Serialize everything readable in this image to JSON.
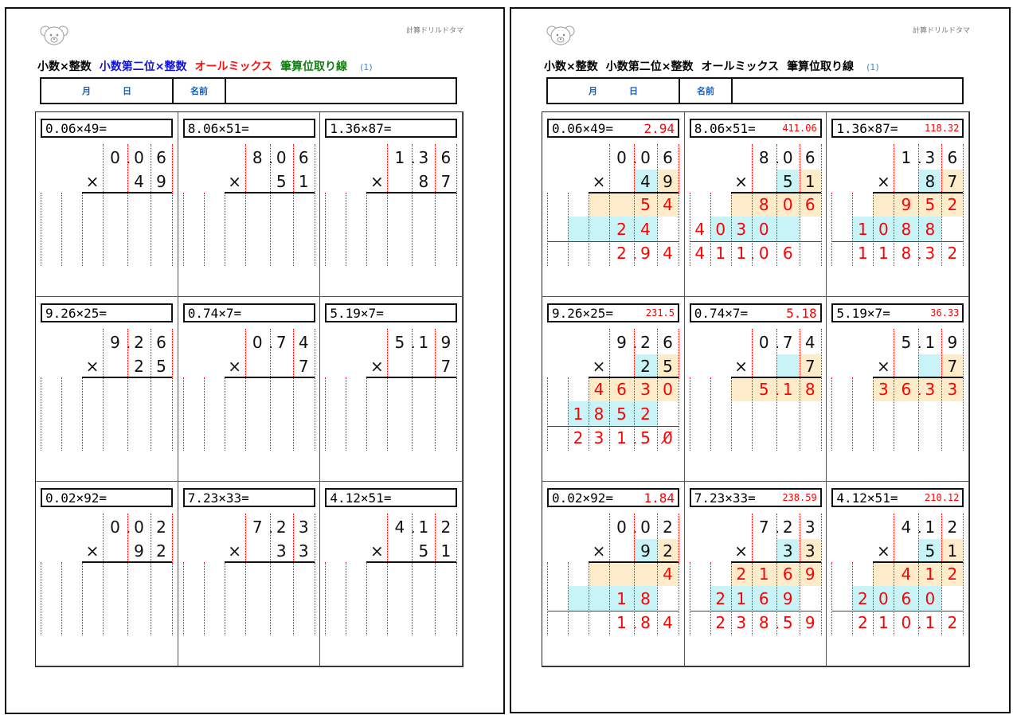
{
  "header": {
    "brand": "計算ドリルドタマ",
    "title_parts": [
      {
        "text": "小数×整数",
        "color": "#000000"
      },
      {
        "text": "小数第二位×整数",
        "color": "#1010e0"
      },
      {
        "text": "オールミックス",
        "color": "#ff1010"
      },
      {
        "text": "筆算位取り線",
        "color": "#108010"
      }
    ],
    "number": "(1)",
    "month_label": "月",
    "day_label": "日",
    "name_label": "名前"
  },
  "right_title_parts": [
    "小数×整数",
    "小数第二位×整数",
    "オールミックス",
    "筆算位取り線"
  ],
  "colors": {
    "answer": "#ff0000",
    "ones_highlight": "#fdebc9",
    "tens_highlight": "#c8f4f7"
  },
  "problems": [
    {
      "eq": "0.06×49=",
      "answer": "2.94",
      "answer_size": "large",
      "top": [
        "",
        "",
        "",
        "0.",
        "0",
        "6"
      ],
      "mult": [
        "",
        "",
        "×",
        "",
        "4",
        "9"
      ],
      "p1": [
        "",
        "",
        "",
        "",
        "5",
        "4"
      ],
      "p2": [
        "",
        "",
        "",
        "2",
        "4",
        ""
      ],
      "res": [
        "",
        "",
        "",
        "2.",
        "9",
        "4"
      ]
    },
    {
      "eq": "8.06×51=",
      "answer": "411.06",
      "answer_size": "small",
      "top": [
        "",
        "",
        "",
        "8.",
        "0",
        "6"
      ],
      "mult": [
        "",
        "",
        "×",
        "",
        "5",
        "1"
      ],
      "p1": [
        "",
        "",
        "",
        "8",
        "0",
        "6"
      ],
      "p2": [
        "4",
        "0",
        "3",
        "0",
        "",
        ""
      ],
      "res": [
        "4",
        "1",
        "1.",
        "0",
        "6",
        ""
      ]
    },
    {
      "eq": "1.36×87=",
      "answer": "118.32",
      "answer_size": "small",
      "top": [
        "",
        "",
        "",
        "1.",
        "3",
        "6"
      ],
      "mult": [
        "",
        "",
        "×",
        "",
        "8",
        "7"
      ],
      "p1": [
        "",
        "",
        "",
        "9",
        "5",
        "2"
      ],
      "p2": [
        "",
        "1",
        "0",
        "8",
        "8",
        ""
      ],
      "res": [
        "",
        "1",
        "1",
        "8.",
        "3",
        "2"
      ]
    },
    {
      "eq": "9.26×25=",
      "answer": "231.5",
      "answer_size": "small",
      "top": [
        "",
        "",
        "",
        "9.",
        "2",
        "6"
      ],
      "mult": [
        "",
        "",
        "×",
        "",
        "2",
        "5"
      ],
      "p1": [
        "",
        "",
        "4",
        "6",
        "3",
        "0"
      ],
      "p2": [
        "",
        "1",
        "8",
        "5",
        "2",
        ""
      ],
      "res": [
        "",
        "2",
        "3",
        "1.",
        "5",
        "0̸"
      ]
    },
    {
      "eq": "0.74×7=",
      "answer": "5.18",
      "answer_size": "large",
      "top": [
        "",
        "",
        "",
        "0.",
        "7",
        "4"
      ],
      "mult": [
        "",
        "",
        "×",
        "",
        "",
        "7"
      ],
      "p1": [
        "",
        "",
        "",
        "5.",
        "1",
        "8"
      ],
      "p2": null,
      "res": null
    },
    {
      "eq": "5.19×7=",
      "answer": "36.33",
      "answer_size": "small",
      "top": [
        "",
        "",
        "",
        "5.",
        "1",
        "9"
      ],
      "mult": [
        "",
        "",
        "×",
        "",
        "",
        "7"
      ],
      "p1": [
        "",
        "",
        "3",
        "6.",
        "3",
        "3"
      ],
      "p2": null,
      "res": null
    },
    {
      "eq": "0.02×92=",
      "answer": "1.84",
      "answer_size": "large",
      "top": [
        "",
        "",
        "",
        "0.",
        "0",
        "2"
      ],
      "mult": [
        "",
        "",
        "×",
        "",
        "9",
        "2"
      ],
      "p1": [
        "",
        "",
        "",
        "",
        "",
        "4"
      ],
      "p2": [
        "",
        "",
        "",
        "1",
        "8",
        ""
      ],
      "res": [
        "",
        "",
        "",
        "1.",
        "8",
        "4"
      ]
    },
    {
      "eq": "7.23×33=",
      "answer": "238.59",
      "answer_size": "small",
      "top": [
        "",
        "",
        "",
        "7.",
        "2",
        "3"
      ],
      "mult": [
        "",
        "",
        "×",
        "",
        "3",
        "3"
      ],
      "p1": [
        "",
        "",
        "2",
        "1",
        "6",
        "9"
      ],
      "p2": [
        "",
        "2",
        "1",
        "6",
        "9",
        ""
      ],
      "res": [
        "",
        "2",
        "3",
        "8.",
        "5",
        "9"
      ]
    },
    {
      "eq": "4.12×51=",
      "answer": "210.12",
      "answer_size": "small",
      "top": [
        "",
        "",
        "",
        "4.",
        "1",
        "2"
      ],
      "mult": [
        "",
        "",
        "×",
        "",
        "5",
        "1"
      ],
      "p1": [
        "",
        "",
        "",
        "4",
        "1",
        "2"
      ],
      "p2": [
        "",
        "2",
        "0",
        "6",
        "0",
        ""
      ],
      "res": [
        "",
        "2",
        "1",
        "0.",
        "1",
        "2"
      ]
    }
  ]
}
